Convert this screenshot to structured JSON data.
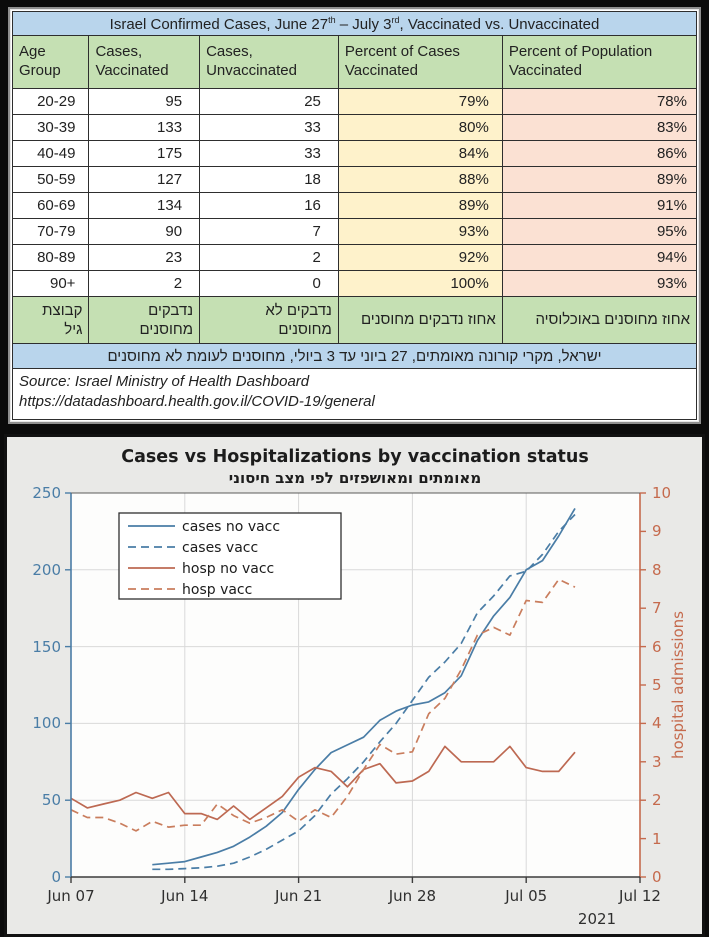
{
  "table": {
    "title": {
      "pre": "Israel Confirmed Cases, June 27",
      "sup1": "th",
      "mid": " – July 3",
      "sup2": "rd",
      "post": ", Vaccinated vs. Unvaccinated"
    },
    "headers": [
      {
        "l1": "Age",
        "l2": "Group"
      },
      {
        "l1": "Cases,",
        "l2": "Vaccinated"
      },
      {
        "l1": "Cases,",
        "l2": "Unvaccinated"
      },
      {
        "l1": "Percent of Cases",
        "l2": "Vaccinated"
      },
      {
        "l1": "Percent of Population",
        "l2": "Vaccinated"
      }
    ],
    "rows": [
      {
        "age": "20-29",
        "cv": "95",
        "cu": "25",
        "pc": "79%",
        "pp": "78%"
      },
      {
        "age": "30-39",
        "cv": "133",
        "cu": "33",
        "pc": "80%",
        "pp": "83%"
      },
      {
        "age": "40-49",
        "cv": "175",
        "cu": "33",
        "pc": "84%",
        "pp": "86%"
      },
      {
        "age": "50-59",
        "cv": "127",
        "cu": "18",
        "pc": "88%",
        "pp": "89%"
      },
      {
        "age": "60-69",
        "cv": "134",
        "cu": "16",
        "pc": "89%",
        "pp": "91%"
      },
      {
        "age": "70-79",
        "cv": "90",
        "cu": "7",
        "pc": "93%",
        "pp": "95%"
      },
      {
        "age": "80-89",
        "cv": "23",
        "cu": "2",
        "pc": "92%",
        "pp": "94%"
      },
      {
        "age": "90+",
        "cv": "2",
        "cu": "0",
        "pc": "100%",
        "pp": "93%"
      }
    ],
    "hebrew_footer": [
      {
        "l1": "קבוצת",
        "l2": "גיל"
      },
      {
        "l1": "נדבקים",
        "l2": "מחוסנים"
      },
      {
        "l1": "נדבקים לא",
        "l2": "מחוסנים"
      },
      {
        "l1": "אחוז נדבקים מחוסנים",
        "l2": ""
      },
      {
        "l1": "אחוז מחוסנים באוכלוסיה",
        "l2": ""
      }
    ],
    "hebrew_caption": "ישראל, מקרי קורונה מאומתים, 27 ביוני עד 3 ביולי, מחוסנים לעומת לא מחוסנים",
    "source_line1": "Source: Israel Ministry of Health Dashboard",
    "source_line2": "https://datadashboard.health.gov.il/COVID-19/general"
  },
  "chart_data": {
    "type": "line",
    "title": "Cases vs Hospitalizations by vaccination status",
    "subtitle": "מאומתים ומאושפזים לפי מצב חיסוני",
    "x_tick_labels": [
      "Jun 07",
      "Jun 14",
      "Jun 21",
      "Jun 28",
      "Jul 05",
      "Jul 12"
    ],
    "year_label": "2021",
    "x_domain_days": 35,
    "grid": true,
    "legend_position": "upper-left",
    "left_axis": {
      "min": 0,
      "max": 250,
      "tick_labels": [
        "0",
        "50",
        "100",
        "150",
        "200",
        "250"
      ],
      "color": "#4a7da6"
    },
    "right_axis": {
      "min": 0,
      "max": 10,
      "tick_labels": [
        "0",
        "1",
        "2",
        "3",
        "4",
        "5",
        "6",
        "7",
        "8",
        "9",
        "10"
      ],
      "label": "hospital admissions",
      "color": "#c56a4d"
    },
    "series": [
      {
        "name": "cases no vacc",
        "axis": "left",
        "style": "solid",
        "color": "#4a7da6",
        "start_day": 5,
        "values": [
          8,
          9,
          10,
          13,
          16,
          20,
          26,
          33,
          42,
          57,
          70,
          81,
          86,
          91,
          102,
          108,
          112,
          114,
          120,
          131,
          154,
          170,
          182,
          200,
          206,
          222,
          240
        ]
      },
      {
        "name": "cases vacc",
        "axis": "left",
        "style": "dashed",
        "color": "#4a7da6",
        "start_day": 5,
        "values": [
          5,
          5,
          5.5,
          6,
          7,
          9,
          13,
          18,
          24,
          30,
          40,
          54,
          64,
          75,
          88,
          100,
          115,
          130,
          140,
          152,
          172,
          183,
          196,
          199,
          210,
          225,
          236
        ]
      },
      {
        "name": "hosp no vacc",
        "axis": "right",
        "style": "solid",
        "color": "#bd6952",
        "start_day": 0,
        "values": [
          2.05,
          1.8,
          1.9,
          2.0,
          2.2,
          2.05,
          2.2,
          1.65,
          1.65,
          1.5,
          1.85,
          1.5,
          1.8,
          2.1,
          2.6,
          2.85,
          2.75,
          2.35,
          2.8,
          2.95,
          2.45,
          2.5,
          2.75,
          3.4,
          3.0,
          3.0,
          3.0,
          3.4,
          2.85,
          2.75,
          2.75,
          3.25
        ]
      },
      {
        "name": "hosp vacc",
        "axis": "right",
        "style": "dashed",
        "color": "#c97d5d",
        "start_day": 0,
        "values": [
          1.75,
          1.55,
          1.55,
          1.4,
          1.2,
          1.45,
          1.3,
          1.35,
          1.35,
          1.9,
          1.6,
          1.4,
          1.55,
          1.75,
          1.45,
          1.75,
          1.55,
          2.1,
          2.8,
          3.45,
          3.2,
          3.26,
          4.25,
          4.65,
          5.4,
          6.3,
          6.5,
          6.3,
          7.2,
          7.15,
          7.75,
          7.55
        ]
      }
    ]
  }
}
